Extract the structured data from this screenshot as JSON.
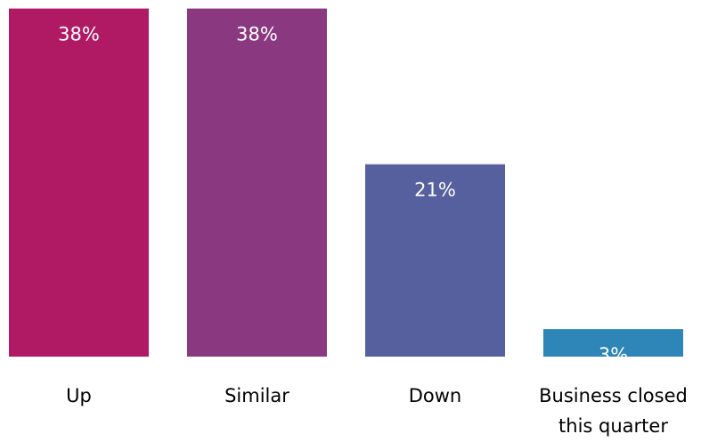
{
  "chart_data": {
    "type": "bar",
    "categories": [
      "Up",
      "Similar",
      "Down",
      "Business closed this quarter"
    ],
    "category_lines": [
      [
        "Up"
      ],
      [
        "Similar"
      ],
      [
        "Down"
      ],
      [
        "Business closed",
        "this quarter"
      ]
    ],
    "values": [
      38,
      38,
      21,
      3
    ],
    "value_labels": [
      "38%",
      "38%",
      "21%",
      "3%"
    ],
    "colors": [
      "#b01a65",
      "#8a3880",
      "#56609e",
      "#2e85b8"
    ],
    "ylim": [
      0,
      40
    ],
    "grid": false,
    "legend": "none"
  }
}
